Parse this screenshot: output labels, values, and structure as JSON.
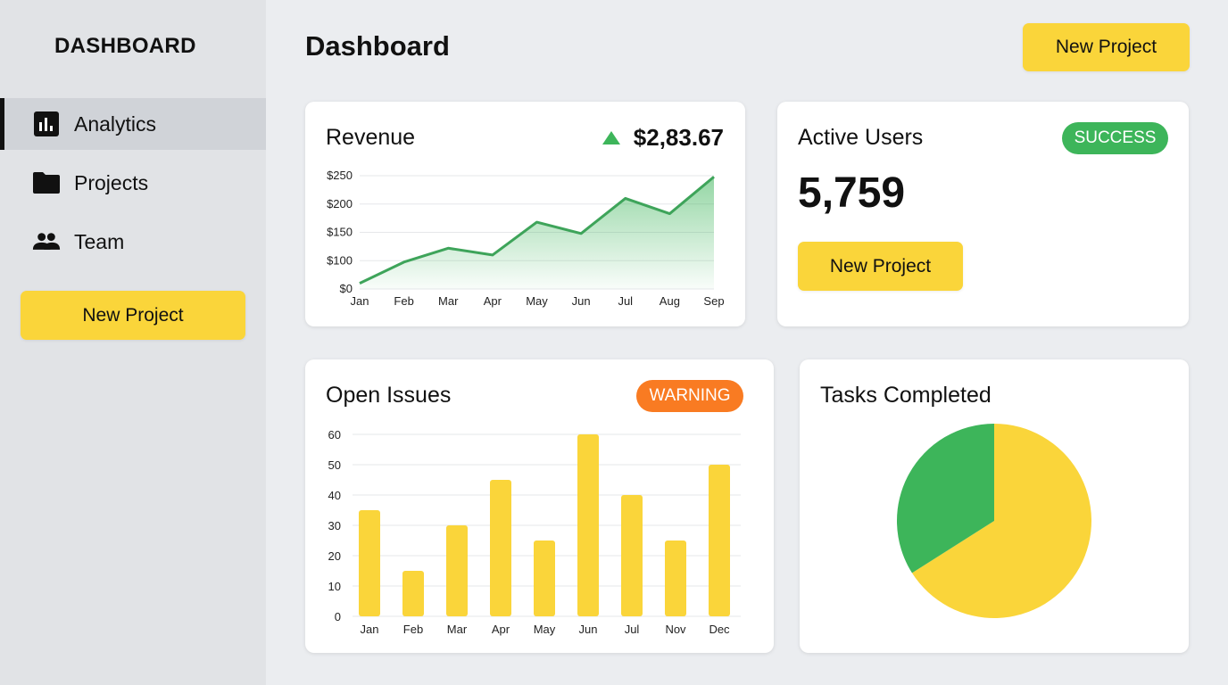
{
  "sidebar": {
    "brand": "DASHBOARD",
    "items": [
      {
        "label": "Analytics",
        "icon": "bar-chart-icon",
        "active": true
      },
      {
        "label": "Projects",
        "icon": "folder-icon"
      },
      {
        "label": "Team",
        "icon": "team-icon"
      }
    ],
    "button": "New Project"
  },
  "header": {
    "title": "Dashboard",
    "button": "New Project"
  },
  "revenue": {
    "title": "Revenue",
    "value": "$2,83.67",
    "trend": "up"
  },
  "active_users": {
    "title": "Active Users",
    "badge": "SUCCESS",
    "value": "5,759",
    "button": "New Project"
  },
  "open_issues": {
    "title": "Open Issues",
    "badge": "WARNING"
  },
  "tasks": {
    "title": "Tasks Completed"
  },
  "colors": {
    "accent": "#fad53a",
    "success": "#3db55a",
    "warning": "#f97b22",
    "line": "#3ea45a"
  },
  "chart_data": [
    {
      "type": "area",
      "categories": [
        "Jan",
        "Feb",
        "Mar",
        "Apr",
        "May",
        "Jun",
        "Jul",
        "Aug",
        "Sep"
      ],
      "values": [
        20,
        95,
        122,
        110,
        168,
        148,
        210,
        183,
        248
      ],
      "yticks": [
        "$0",
        "$100",
        "$150",
        "$200",
        "$250"
      ],
      "ytick_values": [
        0,
        100,
        150,
        200,
        250
      ],
      "grid": true
    },
    {
      "type": "bar",
      "categories": [
        "Jan",
        "Feb",
        "Mar",
        "Apr",
        "May",
        "Jun",
        "Jul",
        "Nov",
        "Dec"
      ],
      "values": [
        35,
        15,
        30,
        45,
        25,
        60,
        40,
        25,
        50
      ],
      "yticks": [
        "0",
        "10",
        "20",
        "30",
        "40",
        "50",
        "60"
      ],
      "ylim": [
        0,
        60
      ],
      "grid": true
    },
    {
      "type": "pie",
      "slices": [
        {
          "value": 66,
          "color": "#fad53a"
        },
        {
          "value": 34,
          "color": "#3db55a"
        }
      ]
    }
  ]
}
